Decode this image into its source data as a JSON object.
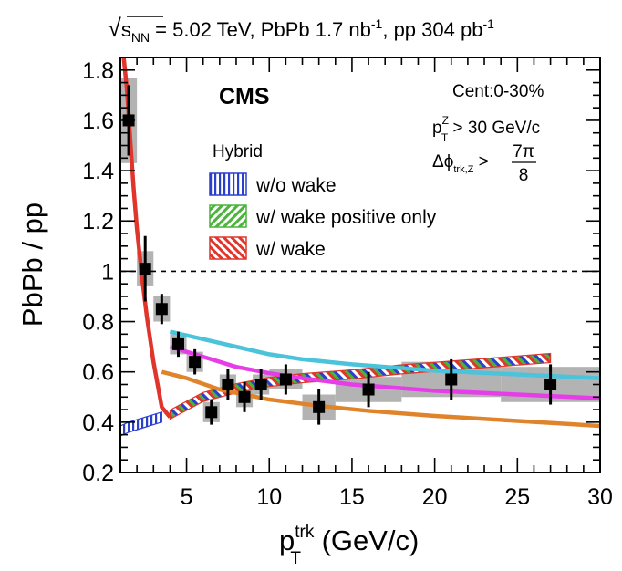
{
  "chart_data": {
    "type": "scatter",
    "title": "√sNN = 5.02 TeV, PbPb 1.7 nb-1, pp 304 pb-1",
    "title_parts": {
      "sqrt_symbol": "√",
      "s": "s",
      "s_sub": "NN",
      "energy": " = 5.02 TeV, PbPb 1.7 nb",
      "sup1": "-1",
      "middle": ", pp 304 pb",
      "sup2": "-1"
    },
    "xlabel": "pTtrk (GeV/c)",
    "xlabel_parts": {
      "p": "p",
      "sup": "trk",
      "sub": "T",
      "unit": " (GeV/c)"
    },
    "ylabel": "PbPb / pp",
    "xlim": [
      1,
      30
    ],
    "ylim": [
      0.2,
      1.85
    ],
    "x_ticks": [
      5,
      10,
      15,
      20,
      25,
      30
    ],
    "y_ticks": [
      0.2,
      0.4,
      0.6,
      0.8,
      1,
      1.2,
      1.4,
      1.6,
      1.8
    ],
    "x_tick_labels": [
      "5",
      "10",
      "15",
      "20",
      "25",
      "30"
    ],
    "y_tick_labels": [
      "0.2",
      "0.4",
      "0.6",
      "0.8",
      "1",
      "1.2",
      "1.4",
      "1.6",
      "1.8"
    ],
    "reference_line": {
      "y": 1,
      "style": "dashed"
    },
    "experiment_label": "CMS",
    "annotations": {
      "centrality": "Cent:0-30%",
      "pt_cut_p": "p",
      "pt_cut_sup": "Z",
      "pt_cut_sub": "T",
      "pt_cut_text": " > 30 GeV/c",
      "dphi_symbol": "Δϕ",
      "dphi_sub": "trk,Z",
      "dphi_gt": " > ",
      "dphi_num": "7π",
      "dphi_den": "8"
    },
    "legend": {
      "header": "Hybrid",
      "position": "upper-middle",
      "entries": [
        {
          "label": "w/o wake",
          "color": "#2b3fcf",
          "hatch": "vertical"
        },
        {
          "label": "w/ wake positive only",
          "color": "#4cb43c",
          "hatch": "diagonal"
        },
        {
          "label": "w/ wake",
          "color": "#e0352b",
          "hatch": "diagonal"
        }
      ]
    },
    "series": [
      {
        "name": "CMS data",
        "kind": "points",
        "color": "#000000",
        "syst_color": "#b3b3b3",
        "x": [
          1.5,
          2.5,
          3.5,
          4.5,
          5.5,
          6.5,
          7.5,
          8.5,
          9.5,
          11,
          13,
          16,
          21,
          27
        ],
        "y": [
          1.6,
          1.01,
          0.85,
          0.71,
          0.64,
          0.44,
          0.55,
          0.5,
          0.55,
          0.57,
          0.46,
          0.53,
          0.57,
          0.55
        ],
        "stat": [
          0.14,
          0.13,
          0.06,
          0.05,
          0.05,
          0.05,
          0.06,
          0.06,
          0.06,
          0.06,
          0.07,
          0.07,
          0.08,
          0.08
        ],
        "syst": [
          0.17,
          0.07,
          0.05,
          0.04,
          0.04,
          0.04,
          0.04,
          0.04,
          0.04,
          0.04,
          0.05,
          0.05,
          0.07,
          0.07
        ],
        "x_half": [
          0.5,
          0.5,
          0.5,
          0.5,
          0.5,
          0.5,
          0.5,
          0.5,
          0.5,
          1.0,
          1.0,
          2.0,
          3.0,
          3.0
        ]
      },
      {
        "name": "cyan curve",
        "kind": "line",
        "color": "#4bc3da",
        "x": [
          4,
          6,
          8,
          10,
          12,
          15,
          20,
          25,
          30
        ],
        "y": [
          0.76,
          0.73,
          0.7,
          0.67,
          0.65,
          0.63,
          0.605,
          0.59,
          0.575
        ]
      },
      {
        "name": "magenta curve",
        "kind": "line",
        "color": "#e63de8",
        "x": [
          4,
          6,
          8,
          10,
          12,
          15,
          20,
          25,
          30
        ],
        "y": [
          0.7,
          0.66,
          0.62,
          0.595,
          0.575,
          0.55,
          0.525,
          0.51,
          0.495
        ]
      },
      {
        "name": "orange curve",
        "kind": "line",
        "color": "#e0842b",
        "x": [
          3.5,
          5,
          7,
          10,
          13,
          16,
          20,
          25,
          30
        ],
        "y": [
          0.6,
          0.575,
          0.53,
          0.49,
          0.465,
          0.445,
          0.425,
          0.405,
          0.385
        ]
      },
      {
        "name": "w/o wake",
        "kind": "band",
        "color": "#2b3fcf",
        "x": [
          1,
          1.5,
          2,
          2.5,
          3,
          3.5
        ],
        "y": [
          0.365,
          0.38,
          0.39,
          0.4,
          0.41,
          0.42
        ],
        "half_width": 0.02
      },
      {
        "name": "w/ wake",
        "kind": "band",
        "color": "#e0352b",
        "x": [
          4,
          5,
          6,
          8,
          10,
          12,
          15,
          18,
          21,
          24,
          27
        ],
        "y": [
          0.43,
          0.465,
          0.5,
          0.535,
          0.56,
          0.575,
          0.59,
          0.61,
          0.625,
          0.64,
          0.655
        ],
        "half_width": 0.018
      },
      {
        "name": "red curve (low pT)",
        "kind": "line",
        "color": "#e0352b",
        "x": [
          1.2,
          1.4,
          1.6,
          1.8,
          2,
          2.3,
          2.6,
          3.0,
          3.5,
          4.0
        ],
        "y": [
          1.85,
          1.72,
          1.52,
          1.33,
          1.17,
          0.98,
          0.82,
          0.64,
          0.46,
          0.42
        ]
      }
    ]
  }
}
